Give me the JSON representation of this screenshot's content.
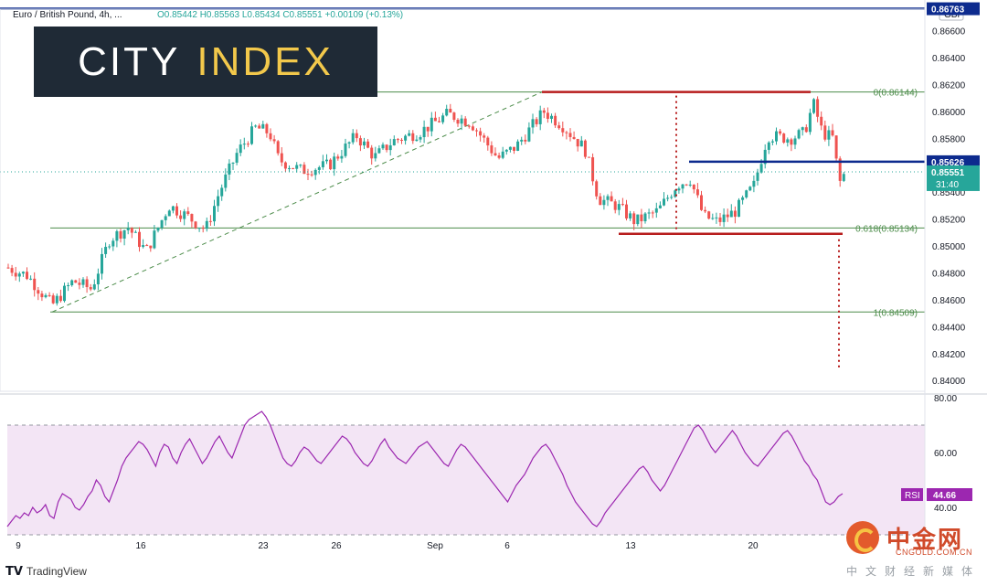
{
  "header": {
    "symbol": "Euro / British Pound, 4h, ...",
    "ohlc": "O0.85442  H0.85563  L0.85434  C0.85551  +0.00109 (+0.13%)",
    "currency": "GBP"
  },
  "logo": {
    "word1": "CITY",
    "word2": "INDEX"
  },
  "footer": {
    "brand": "TradingView"
  },
  "watermark": {
    "title": "中金网",
    "url": "CNGOLD.COM.CN",
    "subtitle": "中文财经新媒体"
  },
  "colors": {
    "up": "#26a69a",
    "down": "#ef5350",
    "level_red": "#b71c1c",
    "level_blue": "#0d2b8e",
    "rsi": "#9c27b0",
    "rsi_band": "#f3e5f5"
  },
  "chart_data": {
    "type": "candlestick",
    "price_axis": {
      "ylim": [
        0.8392,
        0.8676
      ],
      "ticks": [
        "0.86600",
        "0.86400",
        "0.86200",
        "0.86000",
        "0.85800",
        "0.85400",
        "0.85200",
        "0.85000",
        "0.84800",
        "0.84600",
        "0.84400",
        "0.84200",
        "0.84000"
      ]
    },
    "x_axis": {
      "labels": [
        "9",
        "16",
        "23",
        "26",
        "Sep",
        "6",
        "13",
        "20"
      ]
    },
    "price_labels": {
      "top_level": "0.86763",
      "blue_level": "0.85626",
      "last": "0.85551",
      "countdown": "31:40"
    },
    "fibonacci": [
      {
        "label": "0(0.86144)",
        "value": 0.86144
      },
      {
        "label": "0.618(0.85134)",
        "value": 0.85134
      },
      {
        "label": "1(0.84509)",
        "value": 0.84509
      }
    ],
    "rsi": {
      "label": "RSI",
      "value": "44.66",
      "ylim": [
        29,
        81
      ],
      "ticks": [
        "80.00",
        "60.00",
        "40.00"
      ],
      "band": [
        30,
        70
      ],
      "values": [
        33,
        35,
        37,
        36,
        38,
        37,
        40,
        38,
        39,
        41,
        37,
        36,
        42,
        45,
        44,
        43,
        40,
        39,
        41,
        44,
        46,
        50,
        48,
        44,
        42,
        46,
        50,
        55,
        58,
        60,
        62,
        64,
        63,
        61,
        58,
        55,
        60,
        63,
        62,
        58,
        56,
        60,
        63,
        65,
        62,
        59,
        56,
        58,
        61,
        64,
        66,
        63,
        60,
        58,
        62,
        66,
        70,
        72,
        73,
        74,
        75,
        73,
        70,
        66,
        62,
        58,
        56,
        55,
        57,
        60,
        62,
        61,
        59,
        57,
        56,
        58,
        60,
        62,
        64,
        66,
        65,
        63,
        60,
        58,
        56,
        55,
        57,
        60,
        63,
        65,
        62,
        60,
        58,
        57,
        56,
        58,
        60,
        62,
        63,
        64,
        62,
        60,
        58,
        56,
        55,
        58,
        61,
        63,
        62,
        60,
        58,
        56,
        54,
        52,
        50,
        48,
        46,
        44,
        42,
        45,
        48,
        50,
        52,
        55,
        58,
        60,
        62,
        63,
        61,
        58,
        55,
        52,
        48,
        45,
        42,
        40,
        38,
        36,
        34,
        33,
        35,
        38,
        40,
        42,
        44,
        46,
        48,
        50,
        52,
        54,
        55,
        53,
        50,
        48,
        46,
        48,
        51,
        54,
        57,
        60,
        63,
        66,
        69,
        70,
        68,
        65,
        62,
        60,
        62,
        64,
        66,
        68,
        66,
        63,
        60,
        58,
        56,
        55,
        57,
        59,
        61,
        63,
        65,
        67,
        68,
        66,
        63,
        60,
        57,
        55,
        52,
        50,
        46,
        42,
        41,
        42,
        44,
        45
      ]
    },
    "ohlc_series": []
  }
}
